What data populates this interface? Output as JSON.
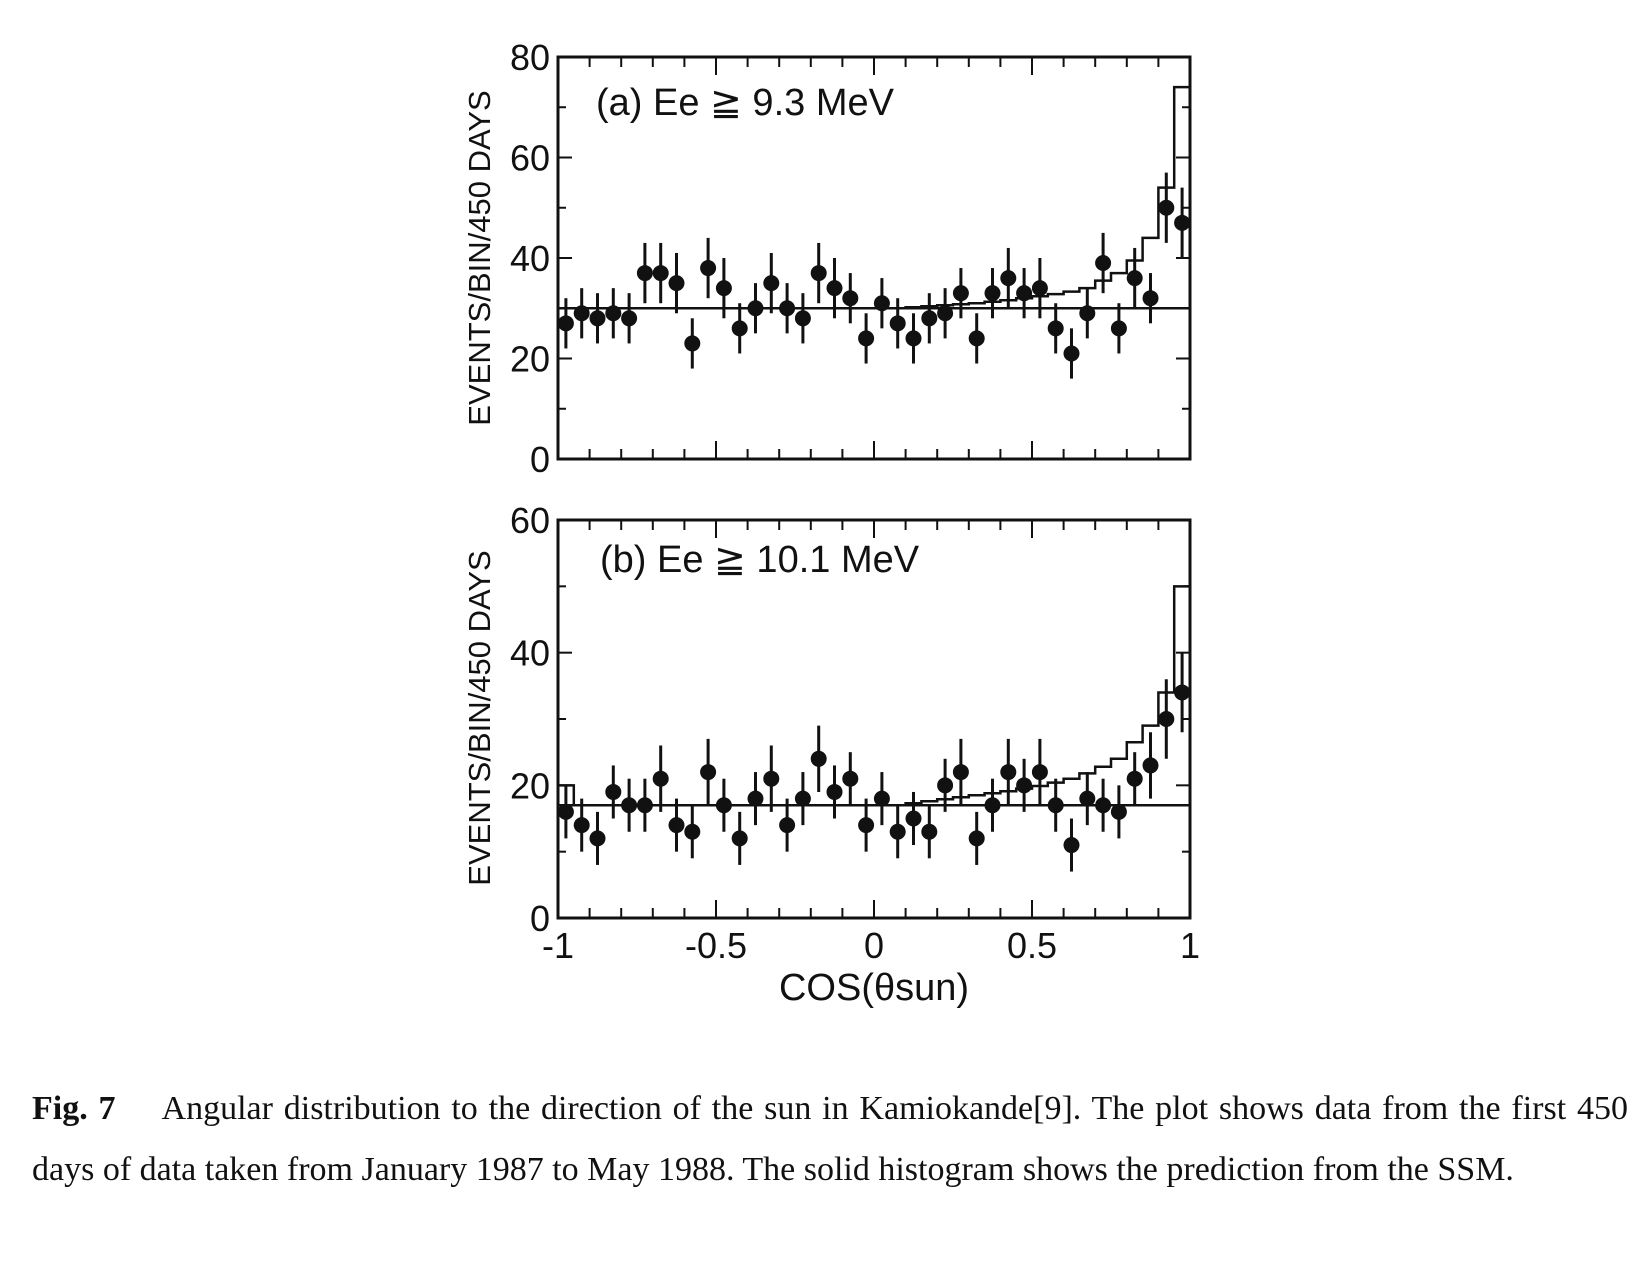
{
  "chart_data": [
    {
      "type": "scatter",
      "panel_label": "(a) Ee ≧ 9.3 MeV",
      "ylabel": "EVENTS/BIN/450 DAYS",
      "xlabel": "",
      "xlim": [
        -1,
        1
      ],
      "ylim": [
        0,
        80
      ],
      "yticks": [
        0,
        20,
        40,
        60,
        80
      ],
      "ytick_labels": [
        "0",
        "20",
        "40",
        "60",
        "80"
      ],
      "bin_width": 0.05,
      "x": [
        -0.975,
        -0.925,
        -0.875,
        -0.825,
        -0.775,
        -0.725,
        -0.675,
        -0.625,
        -0.575,
        -0.525,
        -0.475,
        -0.425,
        -0.375,
        -0.325,
        -0.275,
        -0.225,
        -0.175,
        -0.125,
        -0.075,
        -0.025,
        0.025,
        0.075,
        0.125,
        0.175,
        0.225,
        0.275,
        0.325,
        0.375,
        0.425,
        0.475,
        0.525,
        0.575,
        0.625,
        0.675,
        0.725,
        0.775,
        0.825,
        0.875,
        0.925,
        0.975
      ],
      "series": [
        {
          "name": "data",
          "values": [
            27,
            29,
            28,
            29,
            28,
            37,
            37,
            35,
            23,
            38,
            34,
            26,
            30,
            35,
            30,
            28,
            37,
            34,
            32,
            24,
            31,
            27,
            24,
            28,
            29,
            33,
            24,
            33,
            36,
            33,
            34,
            26,
            21,
            29,
            39,
            26,
            36,
            32,
            50,
            47
          ],
          "errors": [
            5,
            5,
            5,
            5,
            5,
            6,
            6,
            6,
            5,
            6,
            6,
            5,
            5,
            6,
            5,
            5,
            6,
            6,
            5,
            5,
            5,
            5,
            5,
            5,
            5,
            5,
            5,
            5,
            6,
            5,
            6,
            5,
            5,
            5,
            6,
            5,
            6,
            5,
            7,
            7
          ]
        },
        {
          "name": "flat background",
          "values": [
            30
          ]
        },
        {
          "name": "SSM prediction histogram",
          "values": [
            30,
            30,
            30,
            30,
            30,
            30,
            30,
            30,
            30,
            30,
            30,
            30,
            30,
            30,
            30,
            30,
            30,
            30,
            30,
            30,
            30,
            30,
            30.2,
            30.4,
            30.6,
            30.8,
            31,
            31.3,
            31.6,
            32,
            32.4,
            32.8,
            33.3,
            34,
            35.5,
            37,
            39.5,
            44,
            54,
            74
          ]
        }
      ]
    },
    {
      "type": "scatter",
      "panel_label": "(b) Ee ≧ 10.1 MeV",
      "ylabel": "EVENTS/BIN/450 DAYS",
      "xlabel": "COS(θsun)",
      "xlim": [
        -1,
        1
      ],
      "ylim": [
        0,
        60
      ],
      "yticks": [
        0,
        20,
        40,
        60
      ],
      "ytick_labels": [
        "0",
        "20",
        "40",
        "60"
      ],
      "xticks": [
        -1,
        -0.5,
        0,
        0.5,
        1
      ],
      "xtick_labels": [
        "-1",
        "-0.5",
        "0",
        "0.5",
        "1"
      ],
      "bin_width": 0.05,
      "x": [
        -0.975,
        -0.925,
        -0.875,
        -0.825,
        -0.775,
        -0.725,
        -0.675,
        -0.625,
        -0.575,
        -0.525,
        -0.475,
        -0.425,
        -0.375,
        -0.325,
        -0.275,
        -0.225,
        -0.175,
        -0.125,
        -0.075,
        -0.025,
        0.025,
        0.075,
        0.125,
        0.175,
        0.225,
        0.275,
        0.325,
        0.375,
        0.425,
        0.475,
        0.525,
        0.575,
        0.625,
        0.675,
        0.725,
        0.775,
        0.825,
        0.875,
        0.925,
        0.975
      ],
      "series": [
        {
          "name": "data",
          "values": [
            16,
            14,
            12,
            19,
            17,
            17,
            21,
            14,
            13,
            22,
            17,
            12,
            18,
            21,
            14,
            18,
            24,
            19,
            21,
            14,
            18,
            13,
            15,
            13,
            20,
            22,
            12,
            17,
            22,
            20,
            22,
            17,
            11,
            18,
            17,
            16,
            21,
            23,
            30,
            34
          ],
          "errors": [
            4,
            4,
            4,
            4,
            4,
            4,
            5,
            4,
            4,
            5,
            4,
            4,
            4,
            5,
            4,
            4,
            5,
            4,
            4,
            4,
            4,
            4,
            4,
            4,
            4,
            5,
            4,
            4,
            5,
            4,
            5,
            4,
            4,
            4,
            4,
            4,
            4,
            5,
            6,
            6
          ]
        },
        {
          "name": "flat background",
          "values": [
            17
          ]
        },
        {
          "name": "SSM prediction histogram",
          "values": [
            20,
            17,
            17,
            17,
            17,
            17,
            17,
            17,
            17,
            17,
            17,
            17,
            17,
            17,
            17,
            17,
            17,
            17,
            17,
            17,
            17,
            17,
            17.3,
            17.6,
            17.9,
            18.2,
            18.5,
            18.8,
            19.1,
            19.5,
            19.9,
            20.4,
            21,
            21.8,
            22.8,
            24,
            26.5,
            29,
            34,
            50
          ]
        }
      ]
    }
  ],
  "caption": {
    "label": "Fig. 7",
    "text": "Angular distribution to the direction of the sun in Kamiokande[9]. The plot shows data from the first 450 days of data taken from January 1987 to May 1988. The solid histogram shows the prediction from the SSM."
  }
}
